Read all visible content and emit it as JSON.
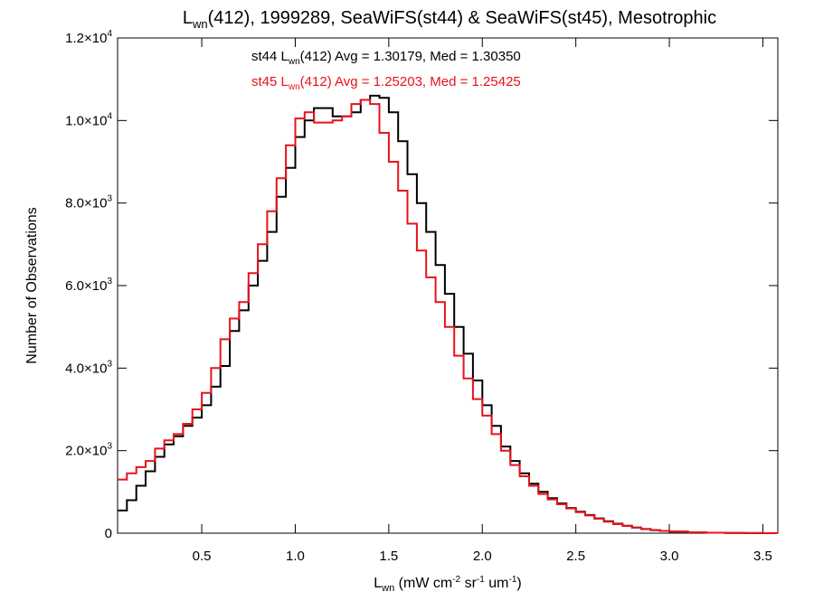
{
  "chart_data": {
    "type": "line",
    "title": {
      "prefix": "L",
      "sub": "wn",
      "suffix": "(412), 1999289, SeaWiFS(st44) & SeaWiFS(st45), Mesotrophic"
    },
    "xlabel": {
      "prefix": "L",
      "sub": "wn",
      "parts": [
        {
          "t": " (mW cm",
          "sup": "-2"
        },
        {
          "t": " sr",
          "sup": "-1"
        },
        {
          "t": " um",
          "sup": "-1"
        },
        {
          "t": ")",
          "sup": ""
        }
      ]
    },
    "ylabel": "Number of Observations",
    "xlim": [
      0.05,
      3.58
    ],
    "ylim": [
      0,
      12000
    ],
    "x_ticks": [
      {
        "value": 0.5,
        "label": "0.5"
      },
      {
        "value": 1.0,
        "label": "1.0"
      },
      {
        "value": 1.5,
        "label": "1.5"
      },
      {
        "value": 2.0,
        "label": "2.0"
      },
      {
        "value": 2.5,
        "label": "2.5"
      },
      {
        "value": 3.0,
        "label": "3.0"
      },
      {
        "value": 3.5,
        "label": "3.5"
      }
    ],
    "y_ticks": [
      {
        "value": 0,
        "mantissa": "0",
        "exp": ""
      },
      {
        "value": 2000,
        "mantissa": "2.0×10",
        "exp": "3"
      },
      {
        "value": 4000,
        "mantissa": "4.0×10",
        "exp": "3"
      },
      {
        "value": 6000,
        "mantissa": "6.0×10",
        "exp": "3"
      },
      {
        "value": 8000,
        "mantissa": "8.0×10",
        "exp": "3"
      },
      {
        "value": 10000,
        "mantissa": "1.0×10",
        "exp": "4"
      },
      {
        "value": 12000,
        "mantissa": "1.2×10",
        "exp": "4"
      }
    ],
    "series": [
      {
        "name": "st44",
        "color": "#000000",
        "annotation": {
          "pre": "st44 L",
          "sub": "wn",
          "post": "(412) Avg = 1.30179, Med = 1.30350"
        },
        "points": [
          [
            0.05,
            550
          ],
          [
            0.1,
            800
          ],
          [
            0.15,
            1150
          ],
          [
            0.2,
            1500
          ],
          [
            0.25,
            1850
          ],
          [
            0.3,
            2150
          ],
          [
            0.35,
            2350
          ],
          [
            0.4,
            2600
          ],
          [
            0.45,
            2800
          ],
          [
            0.5,
            3100
          ],
          [
            0.55,
            3550
          ],
          [
            0.6,
            4050
          ],
          [
            0.65,
            4900
          ],
          [
            0.7,
            5400
          ],
          [
            0.75,
            6000
          ],
          [
            0.8,
            6600
          ],
          [
            0.85,
            7300
          ],
          [
            0.9,
            8150
          ],
          [
            0.95,
            8850
          ],
          [
            1.0,
            9600
          ],
          [
            1.05,
            10000
          ],
          [
            1.1,
            10300
          ],
          [
            1.15,
            10300
          ],
          [
            1.2,
            10100
          ],
          [
            1.25,
            10100
          ],
          [
            1.3,
            10200
          ],
          [
            1.35,
            10500
          ],
          [
            1.4,
            10600
          ],
          [
            1.45,
            10550
          ],
          [
            1.5,
            10200
          ],
          [
            1.55,
            9500
          ],
          [
            1.6,
            8700
          ],
          [
            1.65,
            8000
          ],
          [
            1.7,
            7300
          ],
          [
            1.75,
            6500
          ],
          [
            1.8,
            5800
          ],
          [
            1.85,
            5000
          ],
          [
            1.9,
            4350
          ],
          [
            1.95,
            3700
          ],
          [
            2.0,
            3100
          ],
          [
            2.05,
            2600
          ],
          [
            2.1,
            2100
          ],
          [
            2.15,
            1750
          ],
          [
            2.2,
            1450
          ],
          [
            2.25,
            1200
          ],
          [
            2.3,
            1000
          ],
          [
            2.35,
            850
          ],
          [
            2.4,
            720
          ],
          [
            2.45,
            610
          ],
          [
            2.5,
            520
          ],
          [
            2.55,
            440
          ],
          [
            2.6,
            360
          ],
          [
            2.65,
            290
          ],
          [
            2.7,
            230
          ],
          [
            2.75,
            180
          ],
          [
            2.8,
            135
          ],
          [
            2.85,
            100
          ],
          [
            2.9,
            75
          ],
          [
            2.95,
            55
          ],
          [
            3.0,
            40
          ],
          [
            3.1,
            22
          ],
          [
            3.2,
            12
          ],
          [
            3.3,
            6
          ],
          [
            3.4,
            3
          ],
          [
            3.5,
            1
          ],
          [
            3.58,
            0
          ]
        ]
      },
      {
        "name": "st45",
        "color": "#e8111b",
        "annotation": {
          "pre": "st45 L",
          "sub": "wn",
          "post": "(412) Avg = 1.25203, Med = 1.25425"
        },
        "points": [
          [
            0.05,
            1300
          ],
          [
            0.1,
            1450
          ],
          [
            0.15,
            1600
          ],
          [
            0.2,
            1750
          ],
          [
            0.25,
            2050
          ],
          [
            0.3,
            2250
          ],
          [
            0.35,
            2400
          ],
          [
            0.4,
            2650
          ],
          [
            0.45,
            3000
          ],
          [
            0.5,
            3400
          ],
          [
            0.55,
            4000
          ],
          [
            0.6,
            4700
          ],
          [
            0.65,
            5200
          ],
          [
            0.7,
            5600
          ],
          [
            0.75,
            6300
          ],
          [
            0.8,
            7000
          ],
          [
            0.85,
            7800
          ],
          [
            0.9,
            8600
          ],
          [
            0.95,
            9400
          ],
          [
            1.0,
            10050
          ],
          [
            1.05,
            10200
          ],
          [
            1.1,
            9950
          ],
          [
            1.15,
            9950
          ],
          [
            1.2,
            10000
          ],
          [
            1.25,
            10100
          ],
          [
            1.3,
            10400
          ],
          [
            1.35,
            10500
          ],
          [
            1.4,
            10400
          ],
          [
            1.45,
            9700
          ],
          [
            1.5,
            9000
          ],
          [
            1.55,
            8300
          ],
          [
            1.6,
            7500
          ],
          [
            1.65,
            6850
          ],
          [
            1.7,
            6200
          ],
          [
            1.75,
            5600
          ],
          [
            1.8,
            5000
          ],
          [
            1.85,
            4300
          ],
          [
            1.9,
            3750
          ],
          [
            1.95,
            3250
          ],
          [
            2.0,
            2850
          ],
          [
            2.05,
            2400
          ],
          [
            2.1,
            2000
          ],
          [
            2.15,
            1650
          ],
          [
            2.2,
            1380
          ],
          [
            2.25,
            1150
          ],
          [
            2.3,
            950
          ],
          [
            2.35,
            820
          ],
          [
            2.4,
            700
          ],
          [
            2.45,
            600
          ],
          [
            2.5,
            510
          ],
          [
            2.55,
            430
          ],
          [
            2.6,
            350
          ],
          [
            2.65,
            280
          ],
          [
            2.7,
            220
          ],
          [
            2.75,
            175
          ],
          [
            2.8,
            135
          ],
          [
            2.85,
            100
          ],
          [
            2.9,
            75
          ],
          [
            2.95,
            55
          ],
          [
            3.0,
            40
          ],
          [
            3.1,
            22
          ],
          [
            3.2,
            12
          ],
          [
            3.3,
            6
          ],
          [
            3.4,
            3
          ],
          [
            3.5,
            1
          ],
          [
            3.58,
            0
          ]
        ]
      }
    ]
  }
}
